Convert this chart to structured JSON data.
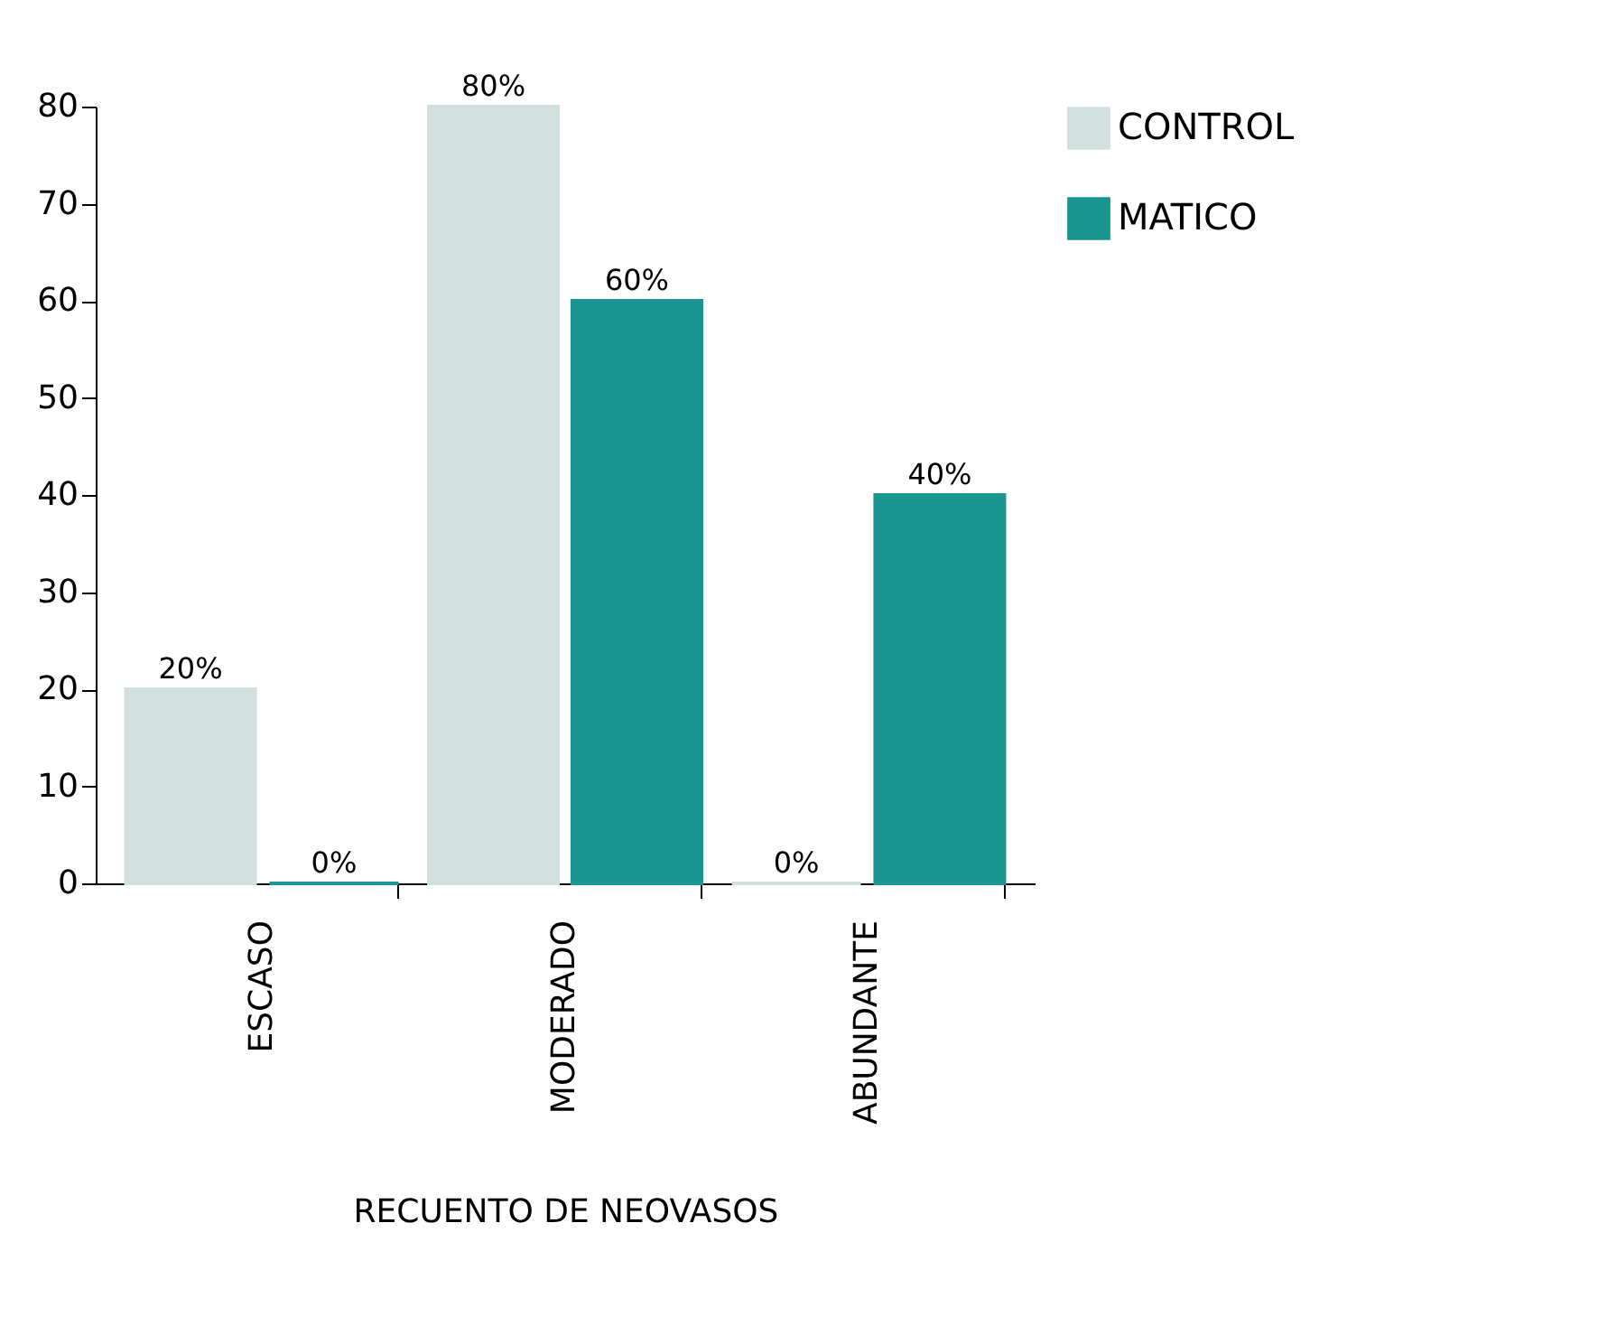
{
  "chart_data": {
    "type": "bar",
    "xlabel": "RECUENTO DE NEOVASOS",
    "categories": [
      "ESCASO",
      "MODERADO",
      "ABUNDANTE"
    ],
    "series": [
      {
        "name": "CONTROL",
        "color": "#d1dfdf",
        "values": [
          20,
          80,
          0
        ],
        "value_labels": [
          "20%",
          "80%",
          "0%"
        ]
      },
      {
        "name": "MATICO",
        "color": "#1a9590",
        "values": [
          0,
          60,
          40
        ],
        "value_labels": [
          "0%",
          "60%",
          "40%"
        ]
      }
    ],
    "ylim": [
      0,
      80
    ],
    "yticks": [
      0,
      10,
      20,
      30,
      40,
      50,
      60,
      70,
      80
    ],
    "grid": false,
    "legend": "right"
  }
}
